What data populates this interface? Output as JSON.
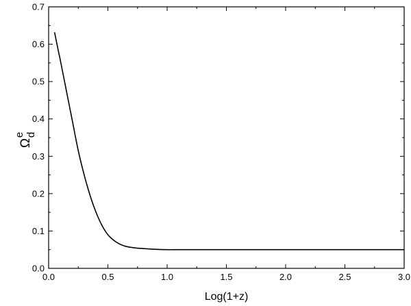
{
  "chart_data": {
    "type": "line",
    "xlabel": "Log(1+z)",
    "ylabel": {
      "base": "Ω",
      "sub": "d",
      "sup": "e"
    },
    "xlim": [
      0.0,
      3.0
    ],
    "ylim": [
      0.0,
      0.7
    ],
    "xticks": [
      "0.0",
      "0.5",
      "1.0",
      "1.5",
      "2.0",
      "2.5",
      "3.0"
    ],
    "yticks": [
      "0.0",
      "0.1",
      "0.2",
      "0.3",
      "0.4",
      "0.5",
      "0.6",
      "0.7"
    ],
    "grid": false,
    "series": [
      {
        "color": "#000000",
        "x": [
          0.05,
          0.08,
          0.1,
          0.15,
          0.2,
          0.25,
          0.3,
          0.35,
          0.4,
          0.45,
          0.5,
          0.55,
          0.6,
          0.65,
          0.7,
          0.75,
          0.8,
          0.9,
          1.0,
          1.1,
          1.25,
          1.5,
          2.0,
          2.5,
          3.0
        ],
        "y": [
          0.632,
          0.585,
          0.555,
          0.475,
          0.395,
          0.315,
          0.25,
          0.195,
          0.15,
          0.115,
          0.09,
          0.075,
          0.065,
          0.059,
          0.056,
          0.054,
          0.053,
          0.051,
          0.05,
          0.05,
          0.05,
          0.05,
          0.05,
          0.05,
          0.05
        ]
      }
    ]
  }
}
